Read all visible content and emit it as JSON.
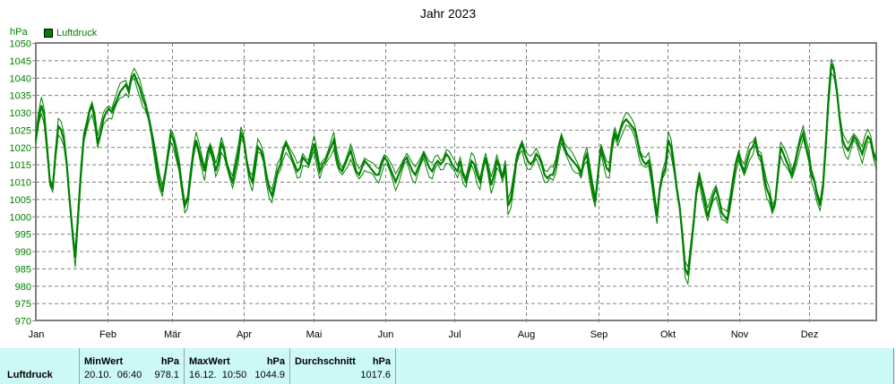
{
  "title": "Jahr 2023",
  "unit_label": "hPa",
  "legend": [
    {
      "label": "Luftdruck",
      "color": "#008000"
    }
  ],
  "colors": {
    "series": "#008000",
    "grid": "#808080",
    "axis": "#808080",
    "table_bg": "#ccf8f6"
  },
  "summary": {
    "row_label": "Luftdruck",
    "min": {
      "header": "MinWert",
      "unit": "hPa",
      "datetime": "20.10.  06:40",
      "value": "978.1"
    },
    "max": {
      "header": "MaxWert",
      "unit": "hPa",
      "datetime": "16.12.  10:50",
      "value": "1044.9"
    },
    "avg": {
      "header": "Durchschnitt",
      "unit": "hPa",
      "value": "1017.6"
    }
  },
  "chart_data": {
    "type": "line",
    "title": "Jahr 2023",
    "xlabel": "",
    "ylabel": "hPa",
    "ylim": [
      970,
      1050
    ],
    "yticks": [
      970,
      975,
      980,
      985,
      990,
      995,
      1000,
      1005,
      1010,
      1015,
      1020,
      1025,
      1030,
      1035,
      1040,
      1045,
      1050
    ],
    "xticks": [
      "Jan",
      "Feb",
      "Mär",
      "Apr",
      "Mai",
      "Jun",
      "Jul",
      "Aug",
      "Sep",
      "Okt",
      "Nov",
      "Dez"
    ],
    "grid": true,
    "legend_position": "top-left",
    "series": [
      {
        "name": "Luftdruck",
        "day_values": [
          1022,
          1028,
          1032,
          1029,
          1020,
          1010,
          1008,
          1018,
          1026,
          1025,
          1022,
          1015,
          1005,
          996,
          988,
          1000,
          1012,
          1022,
          1026,
          1030,
          1032,
          1028,
          1021,
          1024,
          1028,
          1030,
          1031,
          1030,
          1032,
          1034,
          1036,
          1037,
          1038,
          1036,
          1040,
          1041,
          1039,
          1037,
          1034,
          1032,
          1029,
          1025,
          1020,
          1015,
          1010,
          1007,
          1012,
          1018,
          1024,
          1022,
          1018,
          1014,
          1008,
          1003,
          1005,
          1012,
          1018,
          1022,
          1019,
          1016,
          1013,
          1018,
          1020,
          1017,
          1013,
          1016,
          1021,
          1019,
          1015,
          1012,
          1010,
          1014,
          1018,
          1024,
          1022,
          1016,
          1012,
          1010,
          1015,
          1020,
          1019,
          1017,
          1012,
          1008,
          1006,
          1009,
          1013,
          1015,
          1019,
          1021,
          1019,
          1017,
          1015,
          1013,
          1014,
          1017,
          1016,
          1015,
          1018,
          1021,
          1017,
          1013,
          1015,
          1016,
          1018,
          1020,
          1022,
          1017,
          1014,
          1013,
          1015,
          1017,
          1019,
          1016,
          1013,
          1012,
          1014,
          1016,
          1015,
          1014,
          1013,
          1012,
          1012,
          1015,
          1017,
          1016,
          1014,
          1012,
          1010,
          1012,
          1014,
          1016,
          1017,
          1015,
          1013,
          1012,
          1014,
          1016,
          1018,
          1016,
          1014,
          1013,
          1015,
          1016,
          1015,
          1016,
          1018,
          1017,
          1015,
          1014,
          1013,
          1016,
          1012,
          1010,
          1013,
          1016,
          1015,
          1012,
          1010,
          1014,
          1017,
          1013,
          1009,
          1012,
          1016,
          1014,
          1011,
          1015,
          1003,
          1005,
          1010,
          1016,
          1019,
          1021,
          1018,
          1016,
          1015,
          1016,
          1018,
          1017,
          1015,
          1012,
          1011,
          1012,
          1012,
          1015,
          1020,
          1023,
          1020,
          1018,
          1017,
          1016,
          1015,
          1014,
          1012,
          1016,
          1018,
          1013,
          1008,
          1004,
          1012,
          1020,
          1017,
          1014,
          1013,
          1020,
          1024,
          1022,
          1025,
          1027,
          1028,
          1027,
          1026,
          1025,
          1022,
          1018,
          1016,
          1015,
          1016,
          1012,
          1006,
          1000,
          1008,
          1012,
          1014,
          1022,
          1020,
          1015,
          1008,
          1003,
          995,
          985,
          983,
          990,
          998,
          1007,
          1012,
          1008,
          1004,
          1000,
          1003,
          1006,
          1008,
          1005,
          1001,
          1000,
          999,
          1004,
          1010,
          1015,
          1018,
          1015,
          1013,
          1016,
          1019,
          1020,
          1022,
          1018,
          1017,
          1012,
          1008,
          1006,
          1002,
          1004,
          1012,
          1020,
          1018,
          1016,
          1014,
          1012,
          1015,
          1019,
          1022,
          1024,
          1020,
          1017,
          1012,
          1010,
          1006,
          1003,
          1008,
          1020,
          1034,
          1044,
          1042,
          1036,
          1028,
          1022,
          1020,
          1019,
          1021,
          1023,
          1022,
          1020,
          1018,
          1021,
          1023,
          1022,
          1018,
          1016
        ]
      }
    ],
    "annotations": {
      "min": "20.10. 06:40 978.1 hPa",
      "max": "16.12. 10:50 1044.9 hPa",
      "avg": "1017.6 hPa"
    }
  }
}
